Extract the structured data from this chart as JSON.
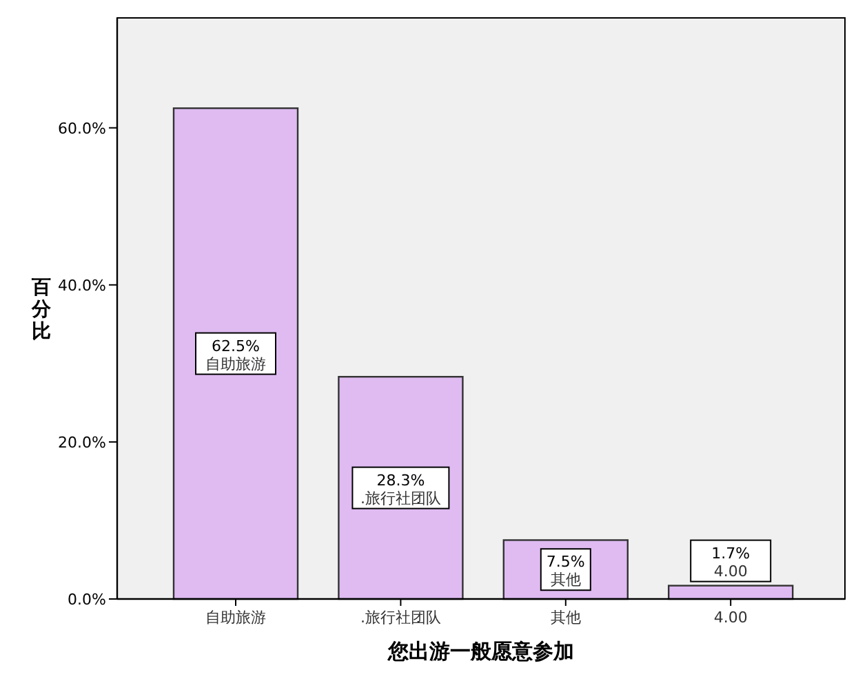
{
  "chart_data": {
    "type": "bar",
    "xlabel": "您出游一般愿意参加",
    "ylabel": "百分比",
    "categories": [
      "自助旅游",
      ".旅行社团队",
      "其他",
      "4.00"
    ],
    "values": [
      62.5,
      28.3,
      7.5,
      1.7
    ],
    "value_labels": [
      "62.5%",
      "28.3%",
      "7.5%",
      "1.7%"
    ],
    "color": "#dfbbf2",
    "ylim": [
      0,
      74
    ],
    "yticks": [
      {
        "value": 0,
        "label": "0.0%"
      },
      {
        "value": 20,
        "label": "20.0%"
      },
      {
        "value": 40,
        "label": "40.0%"
      },
      {
        "value": 60,
        "label": "60.0%"
      }
    ],
    "grid": false
  }
}
